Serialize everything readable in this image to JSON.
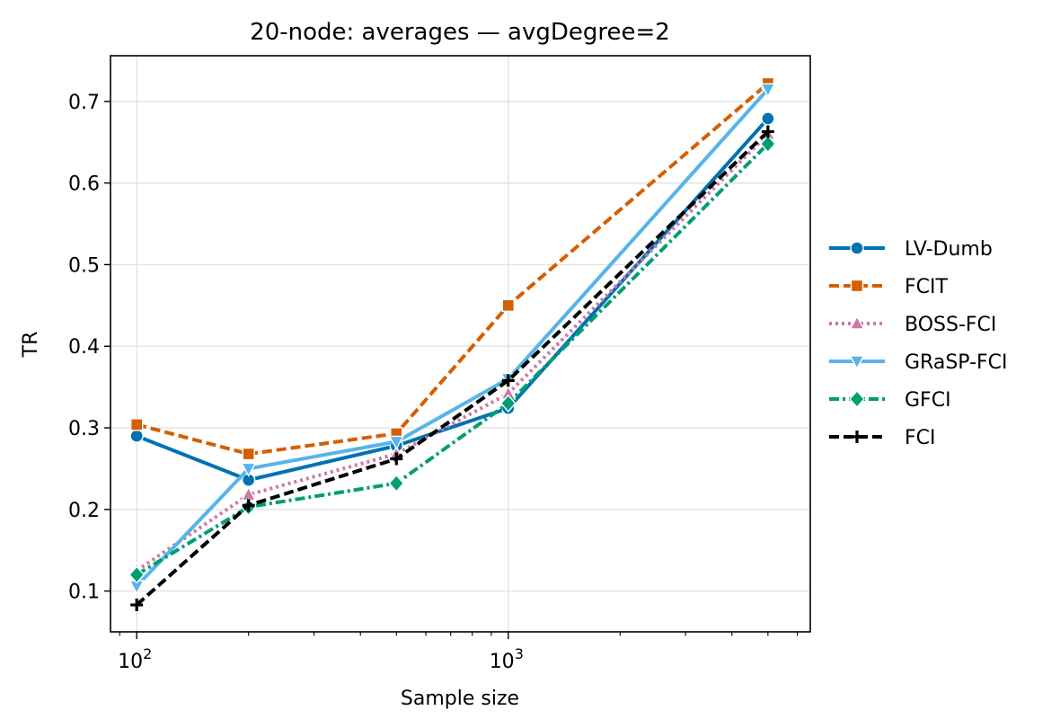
{
  "chart_data": {
    "type": "line",
    "title": "20-node: averages — avgDegree=2",
    "xlabel": "Sample size",
    "ylabel": "TR",
    "xscale": "log",
    "xlim": [
      85,
      6500
    ],
    "ylim": [
      0.05,
      0.756
    ],
    "grid": true,
    "legend_position": "right",
    "x": [
      100,
      200,
      500,
      1000,
      5000
    ],
    "xticks": [
      {
        "value": 100,
        "base": "10",
        "exp": "2"
      },
      {
        "value": 1000,
        "base": "10",
        "exp": "3"
      }
    ],
    "yticks": [
      0.1,
      0.2,
      0.3,
      0.4,
      0.5,
      0.6,
      0.7
    ],
    "ytick_labels": [
      "0.1",
      "0.2",
      "0.3",
      "0.4",
      "0.5",
      "0.6",
      "0.7"
    ],
    "series": [
      {
        "name": "LV-Dumb",
        "values": [
          0.29,
          0.236,
          0.278,
          0.324,
          0.679
        ],
        "color": "#0072b2",
        "dash": "solid",
        "marker": "circle"
      },
      {
        "name": "FCIT",
        "values": [
          0.304,
          0.268,
          0.293,
          0.45,
          0.722
        ],
        "color": "#d55e00",
        "dash": "dashed",
        "marker": "square"
      },
      {
        "name": "BOSS-FCI",
        "values": [
          0.125,
          0.218,
          0.268,
          0.342,
          0.66
        ],
        "color": "#cc79a7",
        "dash": "dotted",
        "marker": "triangle-up"
      },
      {
        "name": "GRaSP-FCI",
        "values": [
          0.106,
          0.25,
          0.283,
          0.36,
          0.715
        ],
        "color": "#56b4e9",
        "dash": "solid",
        "marker": "triangle-down"
      },
      {
        "name": "GFCI",
        "values": [
          0.12,
          0.203,
          0.232,
          0.33,
          0.648
        ],
        "color": "#009e73",
        "dash": "dashdot",
        "marker": "diamond"
      },
      {
        "name": "FCI",
        "values": [
          0.083,
          0.205,
          0.262,
          0.358,
          0.663
        ],
        "color": "#000000",
        "dash": "dashed",
        "marker": "plus"
      }
    ]
  }
}
